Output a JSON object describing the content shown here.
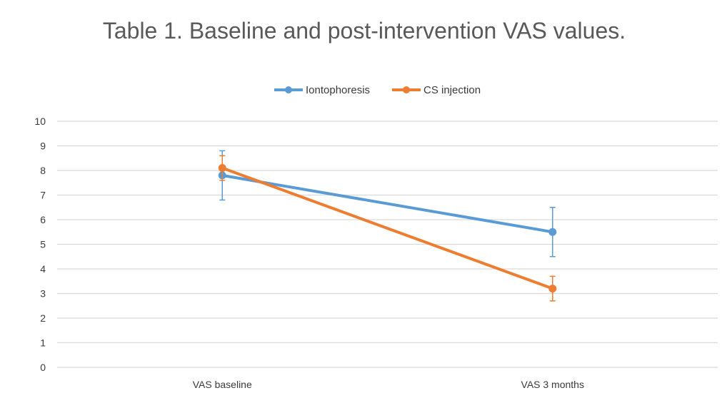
{
  "chart_data": {
    "type": "line",
    "title": "Table 1. Baseline and post-intervention VAS values.",
    "categories": [
      "VAS baseline",
      "VAS 3 months"
    ],
    "yticks": [
      "0",
      "1",
      "2",
      "3",
      "4",
      "5",
      "6",
      "7",
      "8",
      "9",
      "10"
    ],
    "ylim": [
      0,
      10
    ],
    "grid": true,
    "legend_position": "top",
    "series": [
      {
        "name": "Iontophoresis",
        "values": [
          7.8,
          5.5
        ],
        "error": [
          1.0,
          1.0
        ],
        "color": "#5b9bd5"
      },
      {
        "name": "CS injection",
        "values": [
          8.1,
          3.2
        ],
        "error": [
          0.5,
          0.5
        ],
        "color": "#ed7d31"
      }
    ]
  }
}
